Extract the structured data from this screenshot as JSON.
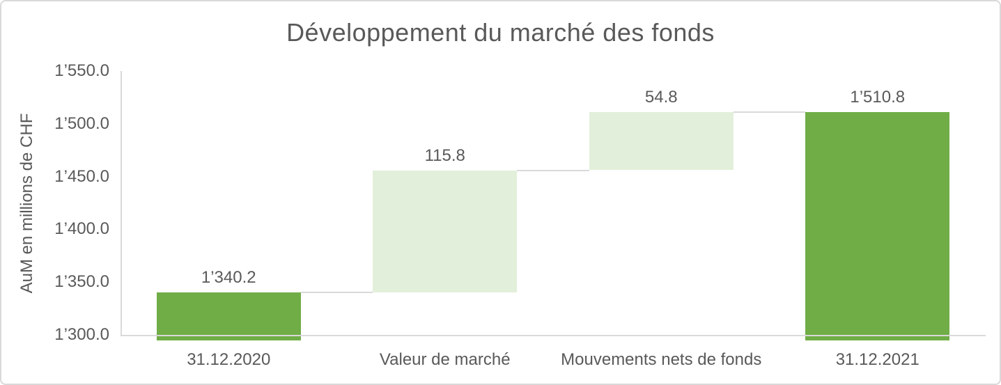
{
  "page": {
    "background": "#FFFFFF",
    "frame_border_color": "#D9D9D9"
  },
  "chart_data": {
    "type": "bar",
    "subtype": "waterfall",
    "title": "Développement du marché des fonds",
    "xlabel": "",
    "ylabel": "AuM en millions de CHF",
    "categories": [
      "31.12.2020",
      "Valeur de marché",
      "Mouvements nets de fonds",
      "31.12.2021"
    ],
    "bars": [
      {
        "category": "31.12.2020",
        "role": "total",
        "start": 1300.0,
        "end": 1340.2,
        "value": 1340.2,
        "label": "1’340.2"
      },
      {
        "category": "Valeur de marché",
        "role": "delta",
        "start": 1340.2,
        "end": 1456.0,
        "value": 115.8,
        "label": "115.8"
      },
      {
        "category": "Mouvements nets de fonds",
        "role": "delta",
        "start": 1456.0,
        "end": 1510.8,
        "value": 54.8,
        "label": "54.8"
      },
      {
        "category": "31.12.2021",
        "role": "total",
        "start": 1300.0,
        "end": 1510.8,
        "value": 1510.8,
        "label": "1’510.8"
      }
    ],
    "ylim": [
      1300,
      1550
    ],
    "ytick_step": 50,
    "yticks": [
      {
        "value": 1300,
        "label": "1’300.0"
      },
      {
        "value": 1350,
        "label": "1’350.0"
      },
      {
        "value": 1400,
        "label": "1’400.0"
      },
      {
        "value": 1450,
        "label": "1’450.0"
      },
      {
        "value": 1500,
        "label": "1’500.0"
      },
      {
        "value": 1550,
        "label": "1’550.0"
      }
    ],
    "grid": false,
    "legend_position": "none",
    "colors": {
      "total_bar": "#70AD47",
      "delta_bar": "#E2EFDA",
      "axis_line": "#D9D9D9",
      "connector": "#D9D9D9",
      "text": "#595959"
    }
  }
}
